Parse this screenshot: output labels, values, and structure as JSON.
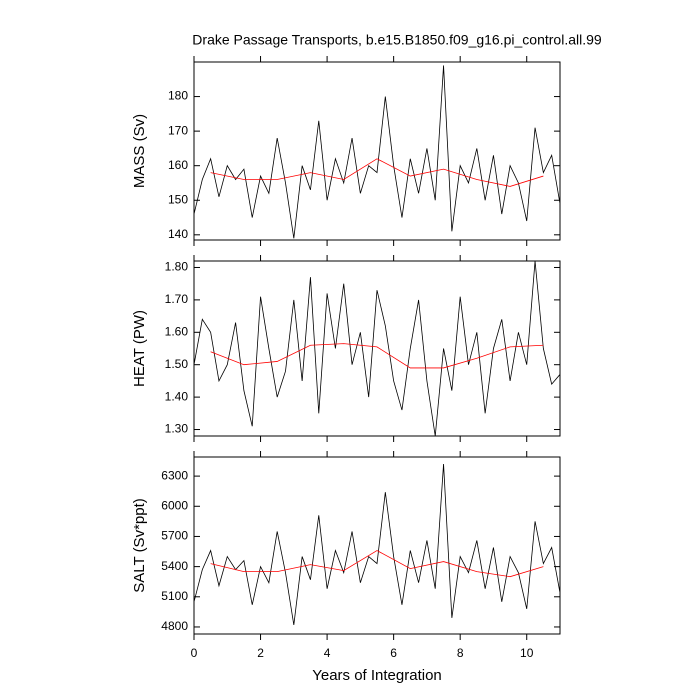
{
  "chart_data": [
    {
      "type": "line",
      "title": "Drake Passage Transports, b.e15.B1850.f09_g16.pi_control.all.99",
      "ylabel": "MASS (Sv)",
      "x": [
        0,
        0.25,
        0.5,
        0.75,
        1,
        1.25,
        1.5,
        1.75,
        2,
        2.25,
        2.5,
        2.75,
        3,
        3.25,
        3.5,
        3.75,
        4,
        4.25,
        4.5,
        4.75,
        5,
        5.25,
        5.5,
        5.75,
        6,
        6.25,
        6.5,
        6.75,
        7,
        7.25,
        7.5,
        7.75,
        8,
        8.25,
        8.5,
        8.75,
        9,
        9.25,
        9.5,
        9.75,
        10,
        10.25,
        10.5,
        10.75,
        11
      ],
      "series": [
        {
          "color": "#000000",
          "values": [
            146,
            156,
            162,
            151,
            160,
            156,
            159,
            145,
            157,
            152,
            168,
            155,
            139,
            160,
            153,
            173,
            150,
            162,
            155,
            168,
            152,
            160,
            158,
            180,
            160,
            145,
            162,
            152,
            165,
            150,
            189,
            141,
            160,
            155,
            165,
            150,
            163,
            146,
            160,
            155,
            144,
            171,
            158,
            163,
            149
          ]
        },
        {
          "color": "#ff0000",
          "x": [
            0.5,
            1.5,
            2.5,
            3.5,
            4.5,
            5.5,
            6.5,
            7.5,
            8.5,
            9.5,
            10.5
          ],
          "values": [
            158,
            156,
            156,
            158,
            156,
            162,
            157,
            159,
            156,
            154,
            157
          ]
        }
      ],
      "xlim": [
        0,
        11
      ],
      "xticks": [
        0,
        2,
        4,
        6,
        8,
        10
      ],
      "ylim": [
        138.5,
        190
      ],
      "yticks": [
        140,
        150,
        160,
        170,
        180
      ]
    },
    {
      "type": "line",
      "ylabel": "HEAT (PW)",
      "x": [
        0,
        0.25,
        0.5,
        0.75,
        1,
        1.25,
        1.5,
        1.75,
        2,
        2.25,
        2.5,
        2.75,
        3,
        3.25,
        3.5,
        3.75,
        4,
        4.25,
        4.5,
        4.75,
        5,
        5.25,
        5.5,
        5.75,
        6,
        6.25,
        6.5,
        6.75,
        7,
        7.25,
        7.5,
        7.75,
        8,
        8.25,
        8.5,
        8.75,
        9,
        9.25,
        9.5,
        9.75,
        10,
        10.25,
        10.5,
        10.75,
        11
      ],
      "series": [
        {
          "color": "#000000",
          "values": [
            1.5,
            1.64,
            1.6,
            1.45,
            1.5,
            1.63,
            1.42,
            1.31,
            1.71,
            1.55,
            1.4,
            1.48,
            1.7,
            1.45,
            1.77,
            1.35,
            1.72,
            1.55,
            1.75,
            1.5,
            1.6,
            1.4,
            1.73,
            1.62,
            1.45,
            1.36,
            1.55,
            1.7,
            1.45,
            1.28,
            1.55,
            1.42,
            1.71,
            1.5,
            1.6,
            1.35,
            1.55,
            1.64,
            1.45,
            1.6,
            1.5,
            1.82,
            1.55,
            1.44,
            1.47
          ]
        },
        {
          "color": "#ff0000",
          "x": [
            0.5,
            1.5,
            2.5,
            3.5,
            4.5,
            5.5,
            6.5,
            7.5,
            8.5,
            9.5,
            10.5
          ],
          "values": [
            1.54,
            1.5,
            1.51,
            1.56,
            1.565,
            1.555,
            1.49,
            1.49,
            1.52,
            1.555,
            1.56
          ]
        }
      ],
      "xlim": [
        0,
        11
      ],
      "xticks": [
        0,
        2,
        4,
        6,
        8,
        10
      ],
      "ylim": [
        1.28,
        1.82
      ],
      "yticks": [
        {
          "value": 1.3,
          "label": "1.30"
        },
        {
          "value": 1.4,
          "label": "1.40"
        },
        {
          "value": 1.5,
          "label": "1.50"
        },
        {
          "value": 1.6,
          "label": "1.60"
        },
        {
          "value": 1.7,
          "label": "1.70"
        },
        {
          "value": 1.8,
          "label": "1.80"
        }
      ]
    },
    {
      "type": "line",
      "ylabel": "SALT (Sv*ppt)",
      "xlabel": "Years of Integration",
      "x": [
        0,
        0.25,
        0.5,
        0.75,
        1,
        1.25,
        1.5,
        1.75,
        2,
        2.25,
        2.5,
        2.75,
        3,
        3.25,
        3.5,
        3.75,
        4,
        4.25,
        4.5,
        4.75,
        5,
        5.25,
        5.5,
        5.75,
        6,
        6.25,
        6.5,
        6.75,
        7,
        7.25,
        7.5,
        7.75,
        8,
        8.25,
        8.5,
        8.75,
        9,
        9.25,
        9.5,
        9.75,
        10,
        10.25,
        10.5,
        10.75,
        11
      ],
      "series": [
        {
          "color": "#000000",
          "values": [
            5050,
            5370,
            5560,
            5210,
            5500,
            5370,
            5460,
            5020,
            5400,
            5240,
            5750,
            5340,
            4820,
            5500,
            5270,
            5910,
            5180,
            5560,
            5340,
            5750,
            5240,
            5500,
            5430,
            6140,
            5500,
            5020,
            5560,
            5240,
            5660,
            5180,
            6420,
            4890,
            5500,
            5340,
            5660,
            5180,
            5590,
            5050,
            5500,
            5340,
            4980,
            5850,
            5430,
            5590,
            5140
          ]
        },
        {
          "color": "#ff0000",
          "x": [
            0.5,
            1.5,
            2.5,
            3.5,
            4.5,
            5.5,
            6.5,
            7.5,
            8.5,
            9.5,
            10.5
          ],
          "values": [
            5430,
            5350,
            5350,
            5420,
            5360,
            5560,
            5380,
            5450,
            5350,
            5300,
            5400
          ]
        }
      ],
      "xlim": [
        0,
        11
      ],
      "xticks": [
        0,
        2,
        4,
        6,
        8,
        10
      ],
      "ylim": [
        4730,
        6490
      ],
      "yticks": [
        4800,
        5100,
        5400,
        5700,
        6000,
        6300
      ]
    }
  ]
}
